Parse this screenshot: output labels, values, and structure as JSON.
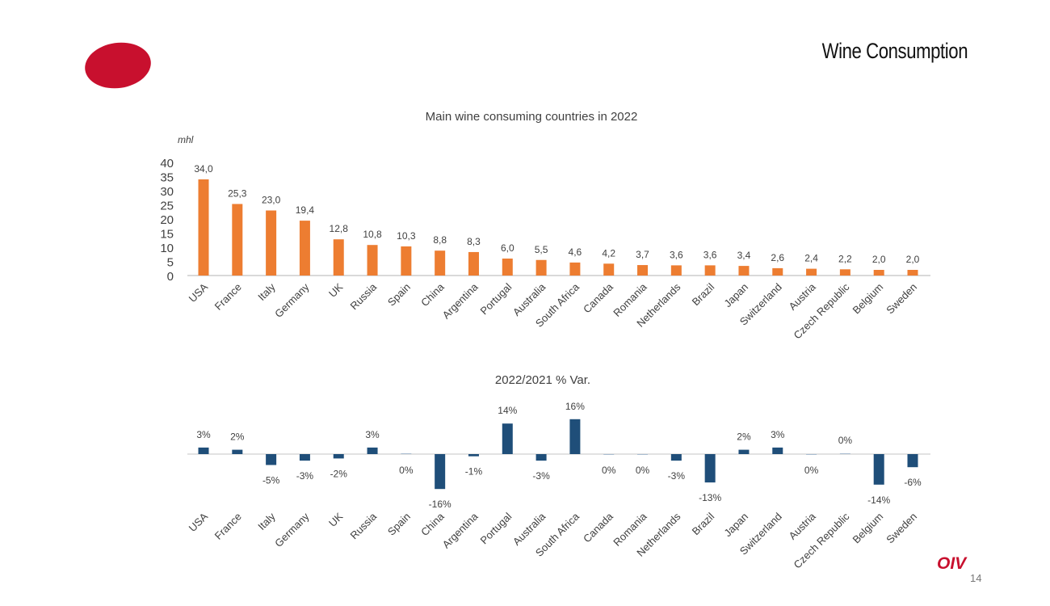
{
  "header": {
    "title": "Wine Consumption"
  },
  "footer": {
    "brand": "OIV",
    "page_number": "14"
  },
  "colors": {
    "consumption": "#ed7d31",
    "variation": "#1f4e79",
    "logo": "#c8102e"
  },
  "chart_data": [
    {
      "type": "bar",
      "title": "Main wine consuming countries in 2022",
      "ylabel": "mhl",
      "ylim": [
        0,
        40
      ],
      "yticks": [
        0,
        5,
        10,
        15,
        20,
        25,
        30,
        35,
        40
      ],
      "categories": [
        "USA",
        "France",
        "Italy",
        "Germany",
        "UK",
        "Russia",
        "Spain",
        "China",
        "Argentina",
        "Portugal",
        "Australia",
        "South Africa",
        "Canada",
        "Romania",
        "Netherlands",
        "Brazil",
        "Japan",
        "Switzerland",
        "Austria",
        "Czech Republic",
        "Belgium",
        "Sweden"
      ],
      "values": [
        34.0,
        25.3,
        23.0,
        19.4,
        12.8,
        10.8,
        10.3,
        8.8,
        8.3,
        6.0,
        5.5,
        4.6,
        4.2,
        3.7,
        3.6,
        3.6,
        3.4,
        2.6,
        2.4,
        2.2,
        2.0,
        2.0
      ],
      "labels": [
        "34,0",
        "25,3",
        "23,0",
        "19,4",
        "12,8",
        "10,8",
        "10,3",
        "8,8",
        "8,3",
        "6,0",
        "5,5",
        "4,6",
        "4,2",
        "3,7",
        "3,6",
        "3,6",
        "3,4",
        "2,6",
        "2,4",
        "2,2",
        "2,0",
        "2,0"
      ]
    },
    {
      "type": "bar",
      "title": "2022/2021 % Var.",
      "categories": [
        "USA",
        "France",
        "Italy",
        "Germany",
        "UK",
        "Russia",
        "Spain",
        "China",
        "Argentina",
        "Portugal",
        "Australia",
        "South Africa",
        "Canada",
        "Romania",
        "Netherlands",
        "Brazil",
        "Japan",
        "Switzerland",
        "Austria",
        "Czech Republic",
        "Belgium",
        "Sweden"
      ],
      "values": [
        3,
        2,
        -5,
        -3,
        -2,
        3,
        0,
        -16,
        -1,
        14,
        -3,
        16,
        -0.3,
        -0.2,
        -3,
        -13,
        2,
        3,
        -0.2,
        0.3,
        -14,
        -6
      ],
      "labels": [
        "3%",
        "2%",
        "-5%",
        "-3%",
        "-2%",
        "3%",
        "0%",
        "-16%",
        "-1%",
        "14%",
        "-3%",
        "16%",
        "0%",
        "0%",
        "-3%",
        "-13%",
        "2%",
        "3%",
        "0%",
        "0%",
        "-14%",
        "-6%"
      ]
    }
  ]
}
